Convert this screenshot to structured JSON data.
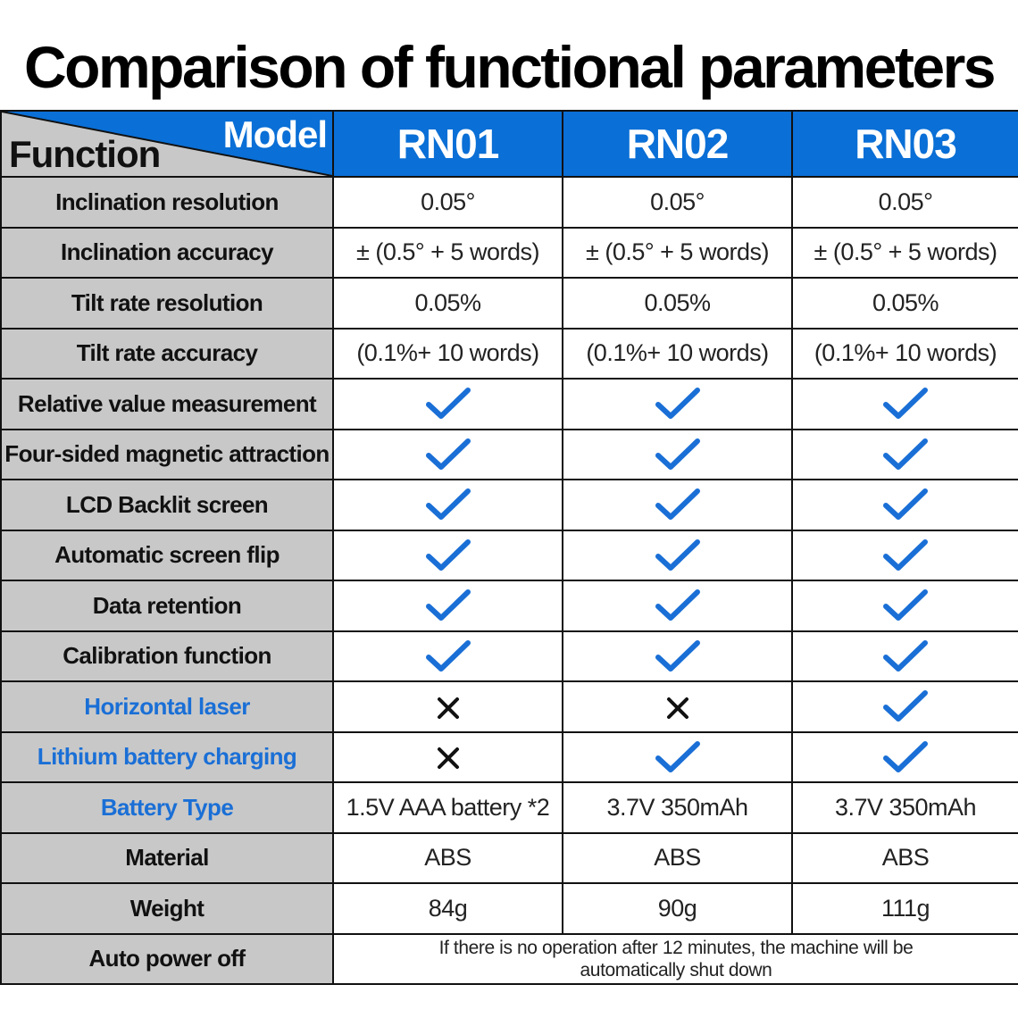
{
  "title": "Comparison of functional parameters",
  "header": {
    "model_label": "Model",
    "function_label": "Function",
    "models": [
      "RN01",
      "RN02",
      "RN03"
    ]
  },
  "rows": [
    {
      "label": "Inclination resolution",
      "highlight": false,
      "cells": [
        {
          "type": "text",
          "text": "0.05°"
        },
        {
          "type": "text",
          "text": "0.05°"
        },
        {
          "type": "text",
          "text": "0.05°"
        }
      ]
    },
    {
      "label": "Inclination accuracy",
      "highlight": false,
      "cells": [
        {
          "type": "text",
          "text": "± (0.5° + 5 words)"
        },
        {
          "type": "text",
          "text": "± (0.5° + 5 words)"
        },
        {
          "type": "text",
          "text": "± (0.5° + 5 words)"
        }
      ]
    },
    {
      "label": "Tilt rate resolution",
      "highlight": false,
      "cells": [
        {
          "type": "text",
          "text": "0.05%"
        },
        {
          "type": "text",
          "text": "0.05%"
        },
        {
          "type": "text",
          "text": "0.05%"
        }
      ]
    },
    {
      "label": "Tilt rate accuracy",
      "highlight": false,
      "cells": [
        {
          "type": "text",
          "text": "(0.1%+ 10 words)"
        },
        {
          "type": "text",
          "text": "(0.1%+ 10 words)"
        },
        {
          "type": "text",
          "text": "(0.1%+ 10 words)"
        }
      ]
    },
    {
      "label": "Relative value measurement",
      "highlight": false,
      "cells": [
        {
          "type": "check"
        },
        {
          "type": "check"
        },
        {
          "type": "check"
        }
      ]
    },
    {
      "label": "Four-sided magnetic attraction",
      "highlight": false,
      "cells": [
        {
          "type": "check"
        },
        {
          "type": "check"
        },
        {
          "type": "check"
        }
      ]
    },
    {
      "label": "LCD Backlit screen",
      "highlight": false,
      "cells": [
        {
          "type": "check"
        },
        {
          "type": "check"
        },
        {
          "type": "check"
        }
      ]
    },
    {
      "label": "Automatic screen flip",
      "highlight": false,
      "cells": [
        {
          "type": "check"
        },
        {
          "type": "check"
        },
        {
          "type": "check"
        }
      ]
    },
    {
      "label": "Data retention",
      "highlight": false,
      "cells": [
        {
          "type": "check"
        },
        {
          "type": "check"
        },
        {
          "type": "check"
        }
      ]
    },
    {
      "label": "Calibration function",
      "highlight": false,
      "cells": [
        {
          "type": "check"
        },
        {
          "type": "check"
        },
        {
          "type": "check"
        }
      ]
    },
    {
      "label": "Horizontal laser",
      "highlight": true,
      "cells": [
        {
          "type": "cross"
        },
        {
          "type": "cross"
        },
        {
          "type": "check"
        }
      ]
    },
    {
      "label": "Lithium battery charging",
      "highlight": true,
      "cells": [
        {
          "type": "cross"
        },
        {
          "type": "check"
        },
        {
          "type": "check"
        }
      ]
    },
    {
      "label": "Battery Type",
      "highlight": true,
      "cells": [
        {
          "type": "text",
          "text": "1.5V AAA battery *2"
        },
        {
          "type": "text",
          "text": "3.7V 350mAh"
        },
        {
          "type": "text",
          "text": "3.7V 350mAh"
        }
      ]
    },
    {
      "label": "Material",
      "highlight": false,
      "cells": [
        {
          "type": "text",
          "text": "ABS"
        },
        {
          "type": "text",
          "text": "ABS"
        },
        {
          "type": "text",
          "text": "ABS"
        }
      ]
    },
    {
      "label": "Weight",
      "highlight": false,
      "cells": [
        {
          "type": "text",
          "text": "84g"
        },
        {
          "type": "text",
          "text": "90g"
        },
        {
          "type": "text",
          "text": "111g"
        }
      ]
    }
  ],
  "auto_power_off": {
    "label": "Auto power off",
    "note": "If there is no operation after 12 minutes, the machine will be automatically shut down"
  },
  "colors": {
    "header_blue": "#0a6fd6",
    "check_blue": "#1a6fd6",
    "label_gray": "#c8c8c8",
    "highlight_text": "#1a6fd6"
  }
}
